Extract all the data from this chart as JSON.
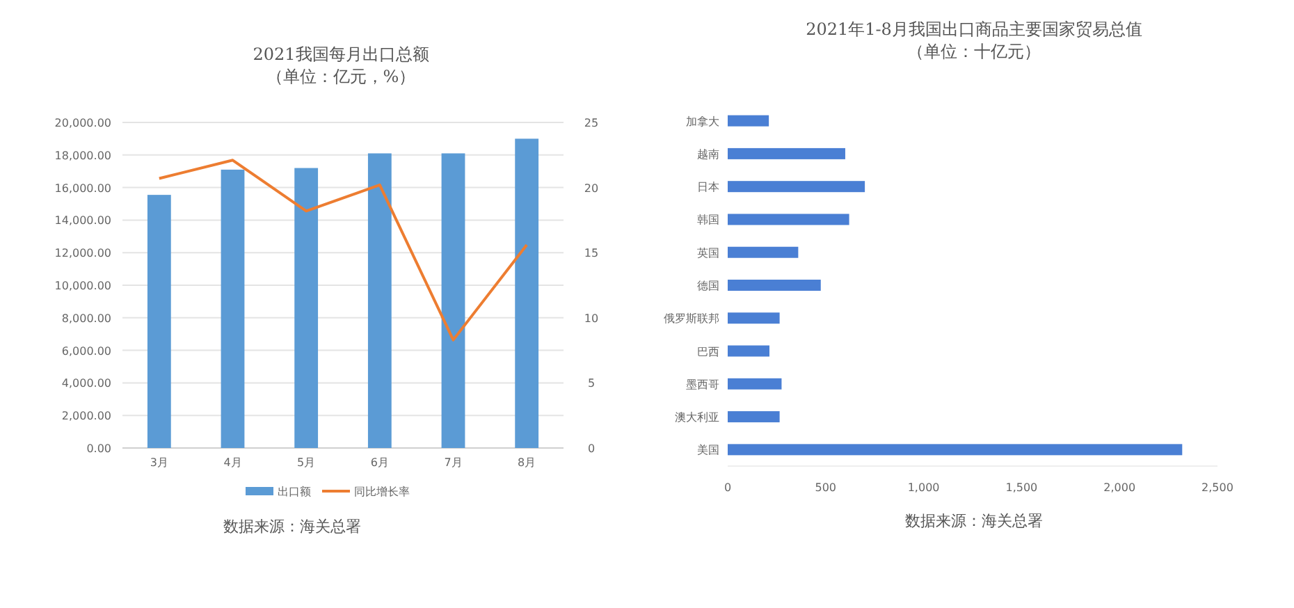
{
  "chart_data": [
    {
      "type": "bar",
      "title": "2021我国每月出口总额",
      "subtitle": "（单位：亿元，%）",
      "categories": [
        "3月",
        "4月",
        "5月",
        "6月",
        "7月",
        "8月"
      ],
      "series": [
        {
          "name": "出口额",
          "type": "bar",
          "color": "#5b9bd5",
          "values": [
            15550,
            17100,
            17200,
            18100,
            18100,
            19000
          ]
        },
        {
          "name": "同比增长率",
          "type": "line",
          "axis": "y2",
          "color": "#ed7d31",
          "values": [
            20.7,
            22.1,
            18.2,
            20.2,
            8.3,
            15.6
          ]
        }
      ],
      "ylim": [
        0,
        20000
      ],
      "yticks": [
        {
          "value": 0,
          "label": "0.00"
        },
        {
          "value": 2000,
          "label": "2,000.00"
        },
        {
          "value": 4000,
          "label": "4,000.00"
        },
        {
          "value": 6000,
          "label": "6,000.00"
        },
        {
          "value": 8000,
          "label": "8,000.00"
        },
        {
          "value": 10000,
          "label": "10,000.00"
        },
        {
          "value": 12000,
          "label": "12,000.00"
        },
        {
          "value": 14000,
          "label": "14,000.00"
        },
        {
          "value": 16000,
          "label": "16,000.00"
        },
        {
          "value": 18000,
          "label": "18,000.00"
        },
        {
          "value": 20000,
          "label": "20,000.00"
        }
      ],
      "y2lim": [
        0,
        25
      ],
      "y2ticks": [
        0,
        5,
        10,
        15,
        20,
        25
      ],
      "grid": "y",
      "legend": "bottom",
      "annotations": [
        "数据来源：海关总署"
      ]
    },
    {
      "type": "bar",
      "orientation": "horizontal",
      "title": "2021年1-8月我国出口商品主要国家贸易总值",
      "subtitle": "（单位：十亿元）",
      "categories": [
        "加拿大",
        "越南",
        "日本",
        "韩国",
        "英国",
        "德国",
        "俄罗斯联邦",
        "巴西",
        "墨西哥",
        "澳大利亚",
        "美国"
      ],
      "values": [
        210,
        600,
        700,
        620,
        360,
        475,
        265,
        213,
        275,
        265,
        2320
      ],
      "color": "#4a7fd4",
      "xlim": [
        0,
        2500
      ],
      "xticks": [
        0,
        500,
        {
          "value": 1000,
          "label": "1,000"
        },
        {
          "value": 1500,
          "label": "1,500"
        },
        {
          "value": 2000,
          "label": "2,000"
        },
        {
          "value": 2500,
          "label": "2,500"
        }
      ],
      "grid": false,
      "annotations": [
        "数据来源：海关总署"
      ]
    }
  ]
}
